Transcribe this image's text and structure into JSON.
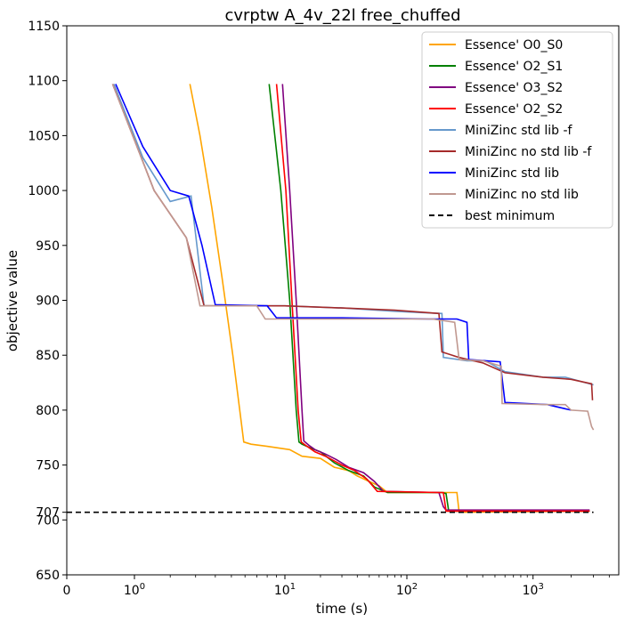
{
  "chart_data": {
    "type": "line",
    "title": "cvrptw A_4v_22l free_chuffed",
    "xlabel": "time (s)",
    "ylabel": "objective value",
    "x_scale": "symlog",
    "ylim": [
      650,
      1150
    ],
    "y_ticks": [
      650,
      700,
      707,
      750,
      800,
      850,
      900,
      950,
      1000,
      1050,
      1100,
      1150
    ],
    "x_ticks": [
      {
        "value": 0,
        "label": "0"
      },
      {
        "value": 1,
        "label": "10",
        "sup": "0"
      },
      {
        "value": 10,
        "label": "10",
        "sup": "1"
      },
      {
        "value": 100,
        "label": "10",
        "sup": "2"
      },
      {
        "value": 1000,
        "label": "10",
        "sup": "3"
      }
    ],
    "legend_position": "top-right",
    "series": [
      {
        "name": "Essence' O0_S0",
        "color": "#ffa500",
        "style": "solid",
        "points": [
          [
            2.75,
            1097
          ],
          [
            3.2,
            1050
          ],
          [
            3.8,
            985
          ],
          [
            4.4,
            920
          ],
          [
            5.1,
            850
          ],
          [
            5.9,
            771
          ],
          [
            6.5,
            769
          ],
          [
            8,
            767
          ],
          [
            11,
            764
          ],
          [
            14,
            758
          ],
          [
            20,
            756
          ],
          [
            26,
            748
          ],
          [
            34,
            745
          ],
          [
            40,
            740
          ],
          [
            50,
            735
          ],
          [
            60,
            731
          ],
          [
            70,
            725
          ],
          [
            220,
            725
          ],
          [
            250,
            725
          ],
          [
            260,
            707
          ],
          [
            2800,
            708
          ]
        ]
      },
      {
        "name": "Essence' O2_S1",
        "color": "#008000",
        "style": "solid",
        "points": [
          [
            8.2,
            1097
          ],
          [
            9.5,
            1000
          ],
          [
            11,
            900
          ],
          [
            12.5,
            800
          ],
          [
            13.2,
            771
          ],
          [
            14,
            769
          ],
          [
            17,
            765
          ],
          [
            20,
            762
          ],
          [
            26,
            752
          ],
          [
            34,
            745
          ],
          [
            45,
            740
          ],
          [
            55,
            730
          ],
          [
            70,
            725
          ],
          [
            190,
            725
          ],
          [
            205,
            724
          ],
          [
            215,
            708
          ],
          [
            2800,
            708
          ]
        ]
      },
      {
        "name": "Essence' O3_S2",
        "color": "#800080",
        "style": "solid",
        "points": [
          [
            9.7,
            1097
          ],
          [
            11,
            1000
          ],
          [
            12.5,
            900
          ],
          [
            14,
            800
          ],
          [
            14.5,
            772
          ],
          [
            16,
            768
          ],
          [
            18,
            764
          ],
          [
            22,
            760
          ],
          [
            27,
            755
          ],
          [
            34,
            748
          ],
          [
            45,
            743
          ],
          [
            55,
            735
          ],
          [
            65,
            726
          ],
          [
            180,
            725
          ],
          [
            195,
            712
          ],
          [
            205,
            709
          ],
          [
            2800,
            709
          ]
        ]
      },
      {
        "name": "Essence' O2_S2",
        "color": "#ff0000",
        "style": "solid",
        "points": [
          [
            9.0,
            1097
          ],
          [
            10.2,
            1000
          ],
          [
            11.5,
            900
          ],
          [
            13,
            800
          ],
          [
            13.8,
            771
          ],
          [
            15,
            768
          ],
          [
            18,
            762
          ],
          [
            22,
            758
          ],
          [
            30,
            750
          ],
          [
            38,
            745
          ],
          [
            48,
            737
          ],
          [
            58,
            726
          ],
          [
            180,
            725
          ],
          [
            195,
            725
          ],
          [
            205,
            708
          ],
          [
            2800,
            708
          ]
        ]
      },
      {
        "name": "MiniZinc std lib  -f",
        "color": "#6699cc",
        "style": "solid",
        "points": [
          [
            0.62,
            1097
          ],
          [
            1.2,
            1030
          ],
          [
            2.0,
            990
          ],
          [
            2.8,
            995
          ],
          [
            3.4,
            895
          ],
          [
            10,
            895
          ],
          [
            30,
            893
          ],
          [
            80,
            890
          ],
          [
            120,
            889
          ],
          [
            190,
            888
          ],
          [
            195,
            848
          ],
          [
            300,
            845
          ],
          [
            420,
            845
          ],
          [
            600,
            835
          ],
          [
            1200,
            830
          ],
          [
            1800,
            830
          ],
          [
            3000,
            823
          ]
        ]
      },
      {
        "name": "MiniZinc no std lib -f",
        "color": "#a52a2a",
        "style": "solid",
        "points": [
          [
            0.6,
            1097
          ],
          [
            1.5,
            1000
          ],
          [
            2.6,
            957
          ],
          [
            3.4,
            895
          ],
          [
            10,
            895
          ],
          [
            30,
            893
          ],
          [
            80,
            891
          ],
          [
            180,
            888
          ],
          [
            190,
            853
          ],
          [
            260,
            848
          ],
          [
            400,
            843
          ],
          [
            600,
            834
          ],
          [
            1200,
            830
          ],
          [
            2000,
            828
          ],
          [
            2900,
            824
          ],
          [
            2950,
            809
          ]
        ]
      },
      {
        "name": "MiniZinc std lib",
        "color": "#0000ff",
        "style": "solid",
        "points": [
          [
            0.65,
            1097
          ],
          [
            1.2,
            1040
          ],
          [
            2.0,
            1000
          ],
          [
            2.7,
            995
          ],
          [
            3.3,
            950
          ],
          [
            4.0,
            896
          ],
          [
            8,
            895
          ],
          [
            9,
            884
          ],
          [
            30,
            884
          ],
          [
            150,
            883
          ],
          [
            250,
            883
          ],
          [
            300,
            880
          ],
          [
            310,
            846
          ],
          [
            420,
            845
          ],
          [
            550,
            844
          ],
          [
            600,
            807
          ],
          [
            1300,
            805
          ],
          [
            2000,
            800
          ]
        ]
      },
      {
        "name": "MiniZinc no std lib",
        "color": "#c09890",
        "style": "solid",
        "points": [
          [
            0.6,
            1097
          ],
          [
            1.5,
            1000
          ],
          [
            2.6,
            957
          ],
          [
            3.2,
            895
          ],
          [
            7,
            895
          ],
          [
            7.8,
            883
          ],
          [
            30,
            883
          ],
          [
            160,
            883
          ],
          [
            240,
            880
          ],
          [
            260,
            846
          ],
          [
            400,
            845
          ],
          [
            560,
            840
          ],
          [
            570,
            806
          ],
          [
            1300,
            805
          ],
          [
            1800,
            805
          ],
          [
            2000,
            800
          ],
          [
            2700,
            799
          ],
          [
            2900,
            785
          ],
          [
            3000,
            782
          ]
        ]
      },
      {
        "name": "best minimum",
        "color": "#000000",
        "style": "dashed",
        "points": [
          [
            0,
            707
          ],
          [
            3000,
            707
          ]
        ]
      }
    ]
  }
}
